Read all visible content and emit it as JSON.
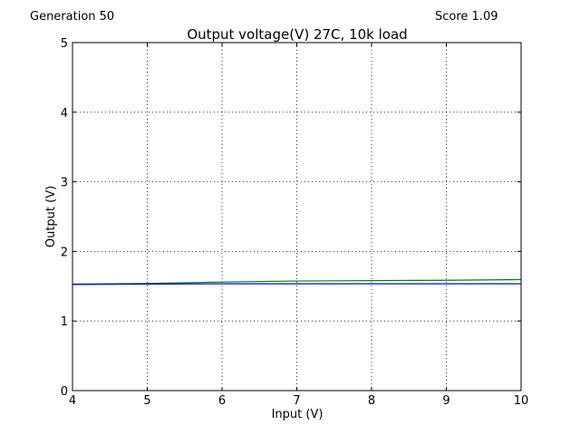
{
  "header": {
    "generation_text": "Generation 50",
    "score_text": "Score 1.09"
  },
  "chart_data": {
    "type": "line",
    "title": "Output voltage(V) 27C, 10k load",
    "xlabel": "Input (V)",
    "ylabel": "Output (V)",
    "xlim": [
      4,
      10
    ],
    "ylim": [
      0,
      5
    ],
    "xticks": [
      4,
      5,
      6,
      7,
      8,
      9,
      10
    ],
    "yticks": [
      0,
      1,
      2,
      3,
      4,
      5
    ],
    "grid": true,
    "series": [
      {
        "color": "#008000",
        "x": [
          4,
          5,
          6,
          7,
          8,
          9,
          10
        ],
        "y": [
          1.53,
          1.54,
          1.56,
          1.575,
          1.58,
          1.585,
          1.595
        ]
      },
      {
        "color": "#0000ff",
        "x": [
          4,
          5,
          6,
          7,
          8,
          9,
          10
        ],
        "y": [
          1.525,
          1.53,
          1.535,
          1.535,
          1.535,
          1.535,
          1.535
        ]
      }
    ]
  }
}
